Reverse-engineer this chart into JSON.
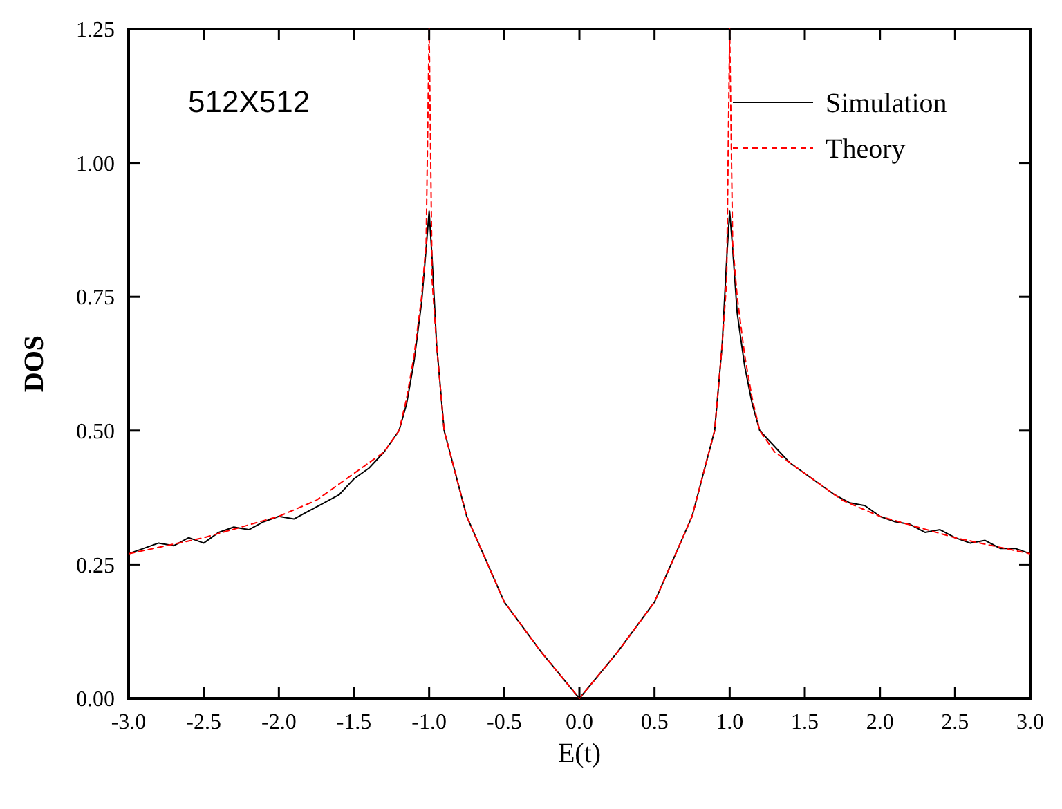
{
  "chart_data": {
    "type": "line",
    "xlabel": "E(t)",
    "ylabel": "DOS",
    "annotations": [
      "512X512"
    ],
    "xlim": [
      -3,
      3
    ],
    "ylim": [
      0,
      1.25
    ],
    "xticks": [
      {
        "value": -3,
        "label": "-3.0"
      },
      {
        "value": -2.5,
        "label": "-2.5"
      },
      {
        "value": -2,
        "label": "-2.0"
      },
      {
        "value": -1.5,
        "label": "-1.5"
      },
      {
        "value": -1,
        "label": "-1.0"
      },
      {
        "value": -0.5,
        "label": "-0.5"
      },
      {
        "value": 0,
        "label": "0.0"
      },
      {
        "value": 0.5,
        "label": "0.5"
      },
      {
        "value": 1,
        "label": "1.0"
      },
      {
        "value": 1.5,
        "label": "1.5"
      },
      {
        "value": 2,
        "label": "2.0"
      },
      {
        "value": 2.5,
        "label": "2.5"
      },
      {
        "value": 3,
        "label": "3.0"
      }
    ],
    "yticks": [
      {
        "value": 0,
        "label": "0.00"
      },
      {
        "value": 0.25,
        "label": "0.25"
      },
      {
        "value": 0.5,
        "label": "0.50"
      },
      {
        "value": 0.75,
        "label": "0.75"
      },
      {
        "value": 1,
        "label": "1.00"
      },
      {
        "value": 1.25,
        "label": "1.25"
      }
    ],
    "grid": false,
    "legend": "top right",
    "series": [
      {
        "name": "Simulation",
        "color": "#000000",
        "line_style": "solid",
        "x": [
          -3,
          -3,
          -2.9,
          -2.8,
          -2.7,
          -2.6,
          -2.5,
          -2.4,
          -2.3,
          -2.2,
          -2.1,
          -2,
          -1.9,
          -1.8,
          -1.7,
          -1.6,
          -1.5,
          -1.4,
          -1.3,
          -1.2,
          -1.15,
          -1.1,
          -1.05,
          -1.02,
          -1,
          -0.98,
          -0.95,
          -0.9,
          -0.75,
          -0.5,
          -0.25,
          0,
          0.25,
          0.5,
          0.75,
          0.9,
          0.95,
          0.98,
          1,
          1.02,
          1.05,
          1.1,
          1.15,
          1.2,
          1.3,
          1.4,
          1.5,
          1.6,
          1.7,
          1.8,
          1.9,
          2,
          2.1,
          2.2,
          2.3,
          2.4,
          2.5,
          2.6,
          2.7,
          2.8,
          2.9,
          3,
          3
        ],
        "values": [
          0,
          0.27,
          0.28,
          0.29,
          0.285,
          0.3,
          0.29,
          0.31,
          0.32,
          0.315,
          0.33,
          0.34,
          0.335,
          0.35,
          0.365,
          0.38,
          0.41,
          0.43,
          0.46,
          0.5,
          0.55,
          0.63,
          0.74,
          0.84,
          0.91,
          0.82,
          0.66,
          0.5,
          0.34,
          0.18,
          0.085,
          0,
          0.085,
          0.18,
          0.34,
          0.5,
          0.66,
          0.82,
          0.91,
          0.84,
          0.72,
          0.62,
          0.55,
          0.5,
          0.47,
          0.44,
          0.42,
          0.4,
          0.38,
          0.365,
          0.36,
          0.34,
          0.33,
          0.325,
          0.31,
          0.315,
          0.3,
          0.29,
          0.295,
          0.28,
          0.28,
          0.27,
          0
        ]
      },
      {
        "name": "Theory",
        "color": "#ff0000",
        "line_style": "dashed",
        "x": [
          -3,
          -3,
          -2.75,
          -2.5,
          -2.25,
          -2,
          -1.75,
          -1.5,
          -1.3,
          -1.2,
          -1.15,
          -1.1,
          -1.05,
          -1.02,
          -1,
          -0.98,
          -0.95,
          -0.9,
          -0.75,
          -0.5,
          -0.25,
          0,
          0.25,
          0.5,
          0.75,
          0.9,
          0.95,
          0.98,
          1,
          1.02,
          1.05,
          1.1,
          1.15,
          1.2,
          1.3,
          1.5,
          1.75,
          2,
          2.25,
          2.5,
          2.75,
          3,
          3
        ],
        "values": [
          0,
          0.27,
          0.285,
          0.3,
          0.32,
          0.34,
          0.37,
          0.42,
          0.46,
          0.5,
          0.56,
          0.64,
          0.75,
          0.85,
          1.25,
          0.78,
          0.66,
          0.5,
          0.34,
          0.18,
          0.085,
          0,
          0.085,
          0.18,
          0.34,
          0.5,
          0.66,
          0.78,
          1.25,
          0.85,
          0.75,
          0.64,
          0.56,
          0.5,
          0.46,
          0.42,
          0.37,
          0.34,
          0.32,
          0.3,
          0.285,
          0.27,
          0
        ]
      }
    ]
  }
}
